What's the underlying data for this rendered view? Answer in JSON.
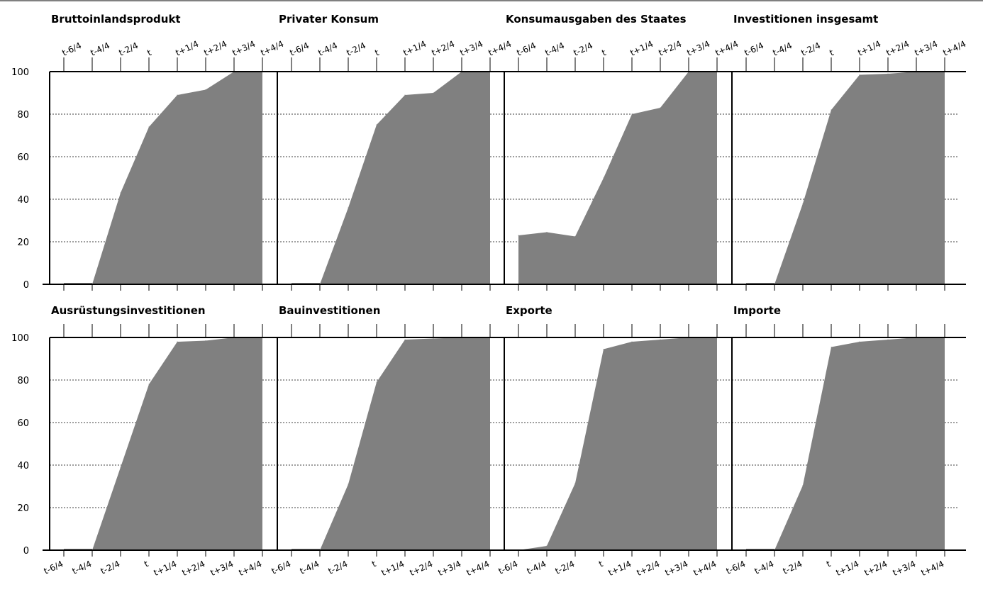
{
  "x_ticks": [
    "t-6/4",
    "t-4/4",
    "t-2/4",
    "t",
    "t+1/4",
    "t+2/4",
    "t+3/4",
    "t+4/4"
  ],
  "colors": {
    "fill": "#808080",
    "axis": "#000000",
    "grid": "#000000"
  },
  "chart_data": [
    {
      "type": "area",
      "title": "Bruttoinlandsprodukt",
      "ylim": [
        0,
        100
      ],
      "y_ticks": [
        0,
        20,
        40,
        60,
        80,
        100
      ],
      "grid": "dotted-horizontal",
      "x_labels_position": "top",
      "x": [
        "t-6/4",
        "t-4/4",
        "t-2/4",
        "t",
        "t+1/4",
        "t+2/4",
        "t+3/4",
        "t+4/4"
      ],
      "values": [
        0,
        0,
        43,
        74,
        89,
        91.5,
        100,
        100
      ]
    },
    {
      "type": "area",
      "title": "Privater Konsum",
      "ylim": [
        0,
        100
      ],
      "y_ticks": [
        0,
        20,
        40,
        60,
        80,
        100
      ],
      "grid": "dotted-horizontal",
      "x_labels_position": "top",
      "x": [
        "t-6/4",
        "t-4/4",
        "t-2/4",
        "t",
        "t+1/4",
        "t+2/4",
        "t+3/4",
        "t+4/4"
      ],
      "values": [
        0,
        0,
        36,
        75,
        89,
        90,
        100,
        100
      ]
    },
    {
      "type": "area",
      "title": "Konsumausgaben des Staates",
      "ylim": [
        0,
        100
      ],
      "y_ticks": [
        0,
        20,
        40,
        60,
        80,
        100
      ],
      "grid": "dotted-horizontal",
      "x_labels_position": "top",
      "x": [
        "t-6/4",
        "t-4/4",
        "t-2/4",
        "t",
        "t+1/4",
        "t+2/4",
        "t+3/4",
        "t+4/4"
      ],
      "values": [
        23,
        24.5,
        22.5,
        50,
        80,
        83,
        100,
        100
      ]
    },
    {
      "type": "area",
      "title": "Investitionen insgesamt",
      "ylim": [
        0,
        100
      ],
      "y_ticks": [
        0,
        20,
        40,
        60,
        80,
        100
      ],
      "grid": "dotted-horizontal",
      "x_labels_position": "top",
      "x": [
        "t-6/4",
        "t-4/4",
        "t-2/4",
        "t",
        "t+1/4",
        "t+2/4",
        "t+3/4",
        "t+4/4"
      ],
      "values": [
        0,
        0,
        38,
        82,
        98.5,
        99,
        100,
        100
      ]
    },
    {
      "type": "area",
      "title": "Ausrüstungsinvestitionen",
      "ylim": [
        0,
        100
      ],
      "y_ticks": [
        0,
        20,
        40,
        60,
        80,
        100
      ],
      "grid": "dotted-horizontal",
      "x_labels_position": "bottom",
      "x": [
        "t-6/4",
        "t-4/4",
        "t-2/4",
        "t",
        "t+1/4",
        "t+2/4",
        "t+3/4",
        "t+4/4"
      ],
      "values": [
        0,
        0,
        39,
        78,
        98,
        98.5,
        100,
        100
      ]
    },
    {
      "type": "area",
      "title": "Bauinvestitionen",
      "ylim": [
        0,
        100
      ],
      "y_ticks": [
        0,
        20,
        40,
        60,
        80,
        100
      ],
      "grid": "dotted-horizontal",
      "x_labels_position": "bottom",
      "x": [
        "t-6/4",
        "t-4/4",
        "t-2/4",
        "t",
        "t+1/4",
        "t+2/4",
        "t+3/4",
        "t+4/4"
      ],
      "values": [
        0,
        0,
        31,
        79,
        99,
        99.5,
        100,
        100
      ]
    },
    {
      "type": "area",
      "title": "Exporte",
      "ylim": [
        0,
        100
      ],
      "y_ticks": [
        0,
        20,
        40,
        60,
        80,
        100
      ],
      "grid": "dotted-horizontal",
      "x_labels_position": "bottom",
      "x": [
        "t-6/4",
        "t-4/4",
        "t-2/4",
        "t",
        "t+1/4",
        "t+2/4",
        "t+3/4",
        "t+4/4"
      ],
      "values": [
        0,
        2,
        31.5,
        94.5,
        98,
        99,
        100,
        100
      ]
    },
    {
      "type": "area",
      "title": "Importe",
      "ylim": [
        0,
        100
      ],
      "y_ticks": [
        0,
        20,
        40,
        60,
        80,
        100
      ],
      "grid": "dotted-horizontal",
      "x_labels_position": "bottom",
      "x": [
        "t-6/4",
        "t-4/4",
        "t-2/4",
        "t",
        "t+1/4",
        "t+2/4",
        "t+3/4",
        "t+4/4"
      ],
      "values": [
        0,
        0,
        30.5,
        95.5,
        98,
        99,
        100,
        100
      ]
    }
  ]
}
